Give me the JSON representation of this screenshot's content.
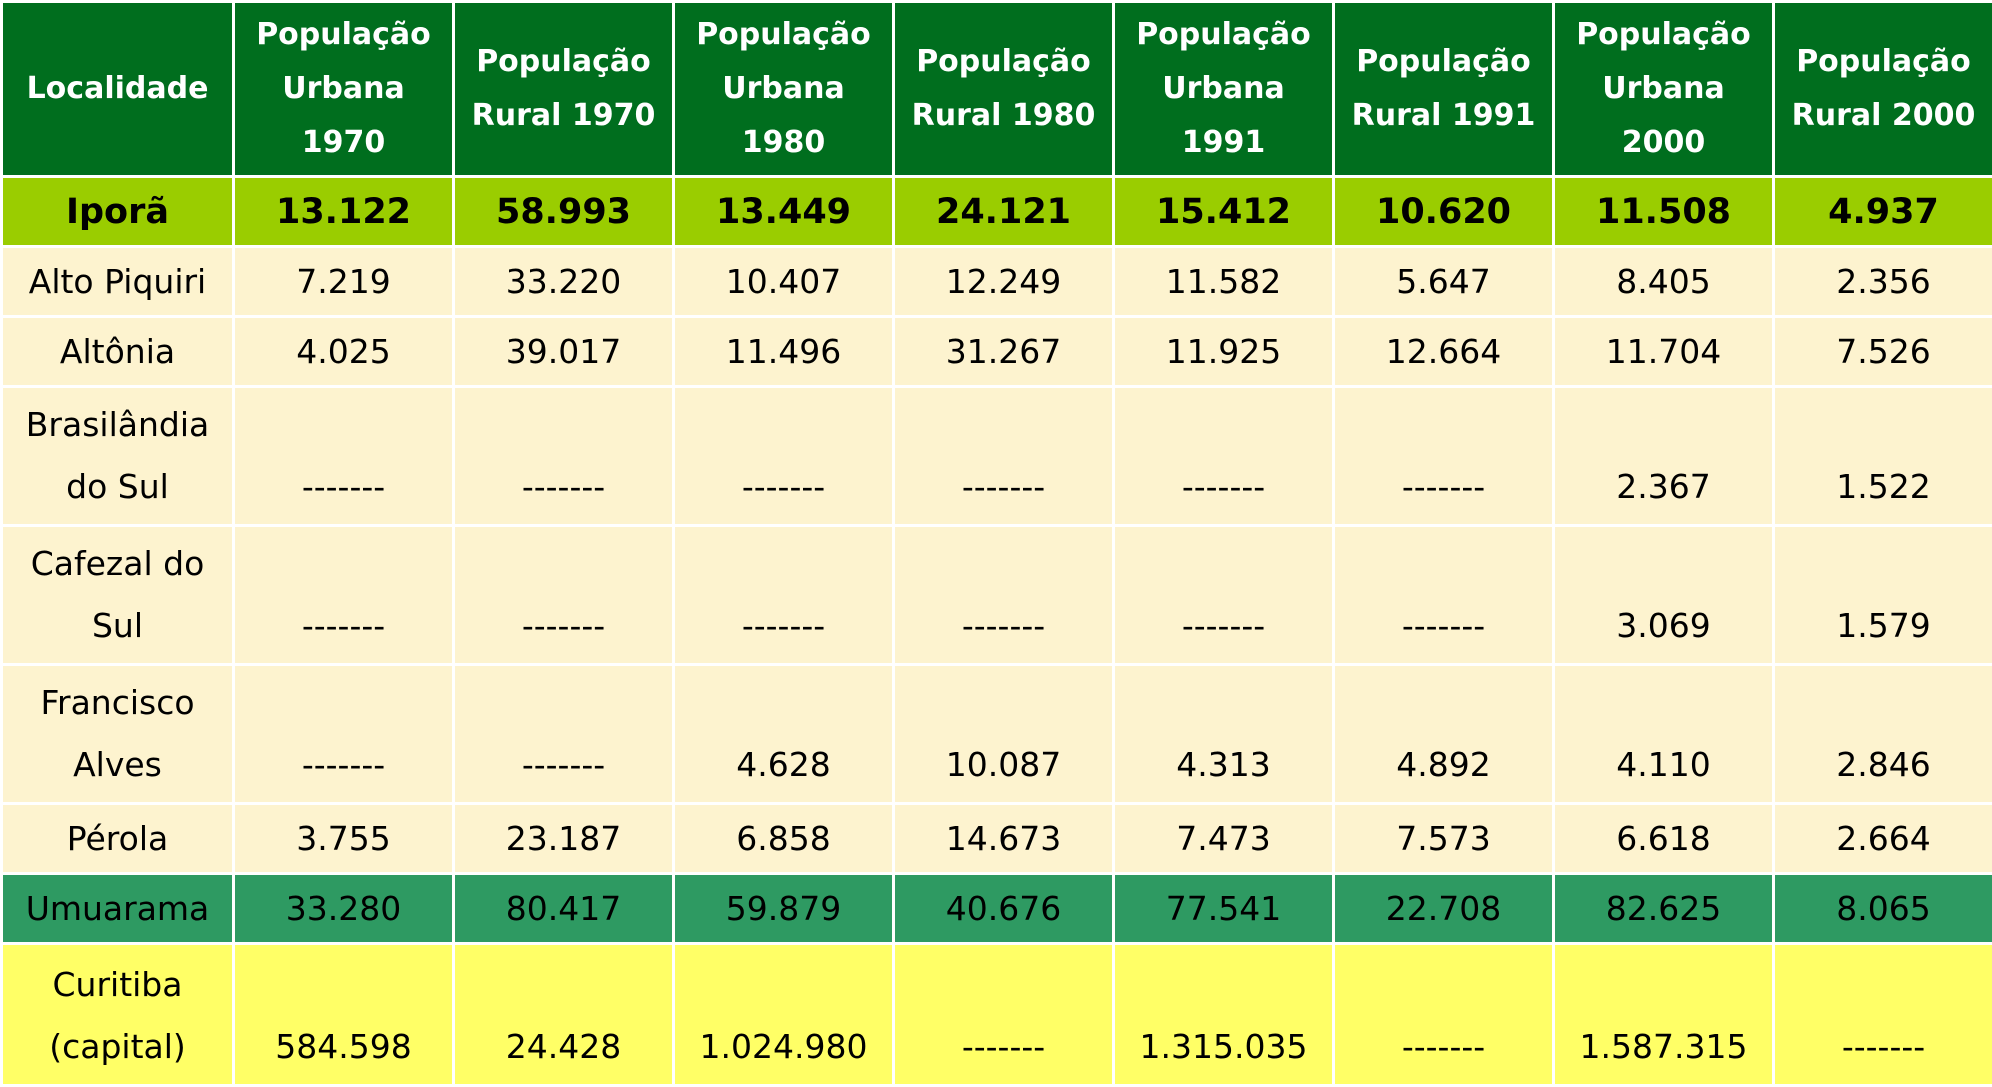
{
  "table": {
    "headers": [
      "Localidade",
      "População Urbana 1970",
      "População Rural 1970",
      "População Urbana 1980",
      "População Rural 1980",
      "População Urbana 1991",
      "População Rural 1991",
      "População Urbana 2000",
      "População Rural 2000"
    ],
    "rows": [
      {
        "style": "highlight",
        "cells": [
          "Iporã",
          "13.122",
          "58.993",
          "13.449",
          "24.121",
          "15.412",
          "10.620",
          "11.508",
          "4.937"
        ]
      },
      {
        "style": "light",
        "cells": [
          "Alto Piquiri",
          "7.219",
          "33.220",
          "10.407",
          "12.249",
          "11.582",
          "5.647",
          "8.405",
          "2.356"
        ]
      },
      {
        "style": "light",
        "cells": [
          "Altônia",
          "4.025",
          "39.017",
          "11.496",
          "31.267",
          "11.925",
          "12.664",
          "11.704",
          "7.526"
        ]
      },
      {
        "style": "tall",
        "cells": [
          "Brasilândia do Sul",
          "-------",
          "-------",
          "-------",
          "-------",
          "-------",
          "-------",
          "2.367",
          "1.522"
        ]
      },
      {
        "style": "tall",
        "cells": [
          "Cafezal do Sul",
          "-------",
          "-------",
          "-------",
          "-------",
          "-------",
          "-------",
          "3.069",
          "1.579"
        ]
      },
      {
        "style": "tall",
        "cells": [
          "Francisco Alves",
          "-------",
          "-------",
          "4.628",
          "10.087",
          "4.313",
          "4.892",
          "4.110",
          "2.846"
        ]
      },
      {
        "style": "light",
        "cells": [
          "Pérola",
          "3.755",
          "23.187",
          "6.858",
          "14.673",
          "7.473",
          "7.573",
          "6.618",
          "2.664"
        ]
      },
      {
        "style": "region",
        "cells": [
          "Umuarama",
          "33.280",
          "80.417",
          "59.879",
          "40.676",
          "77.541",
          "22.708",
          "82.625",
          "8.065"
        ]
      },
      {
        "style": "capital",
        "cells": [
          "Curitiba (capital)",
          "584.598",
          "24.428",
          "1.024.980",
          "-------",
          "1.315.035",
          "-------",
          "1.587.315",
          "-------"
        ]
      }
    ]
  },
  "colors": {
    "header_bg": "#006e1e",
    "highlight_bg": "#9acd00",
    "light_bg": "#fdf3cf",
    "region_bg": "#2e9a62",
    "capital_bg": "#ffff66"
  }
}
